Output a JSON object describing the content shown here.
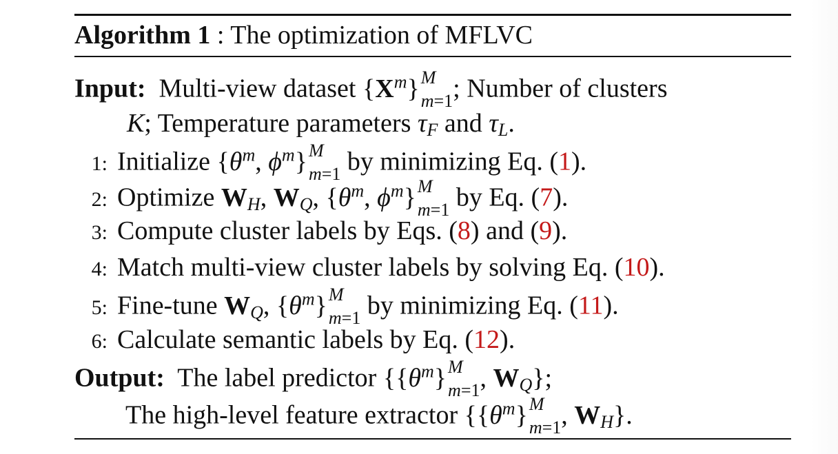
{
  "algorithm": {
    "title_label": "Algorithm 1",
    "title_sep": " : ",
    "title_text": "The optimization of MFLVC",
    "input_label": "Input:",
    "input_line1_a": "Multi-view dataset",
    "input_line1_b": "; Number of clusters",
    "input_line2_a": "; Temperature parameters",
    "input_line2_b": "and",
    "output_label": "Output:",
    "output_line1": "The label predictor",
    "output_line2": "The high-level feature extractor",
    "steps": [
      {
        "num": "1:",
        "text_a": "Initialize",
        "text_b": "by minimizing Eq. (",
        "ref": "1",
        "text_c": ")."
      },
      {
        "num": "2:",
        "text_a": "Optimize",
        "text_b": "by Eq. (",
        "ref": "7",
        "text_c": ")."
      },
      {
        "num": "3:",
        "text_a": "Compute cluster labels by Eqs. (",
        "ref": "8",
        "text_b": ") and (",
        "ref2": "9",
        "text_c": ")."
      },
      {
        "num": "4:",
        "text_a": "Match multi-view cluster labels by solving Eq. (",
        "ref": "10",
        "text_c": ")."
      },
      {
        "num": "5:",
        "text_a": "Fine-tune",
        "text_b": "by minimizing Eq. (",
        "ref": "11",
        "text_c": ")."
      },
      {
        "num": "6:",
        "text_a": "Calculate semantic labels by Eq. (",
        "ref": "12",
        "text_c": ")."
      }
    ]
  },
  "colors": {
    "text": "#111111",
    "reference": "#c41a1a"
  }
}
